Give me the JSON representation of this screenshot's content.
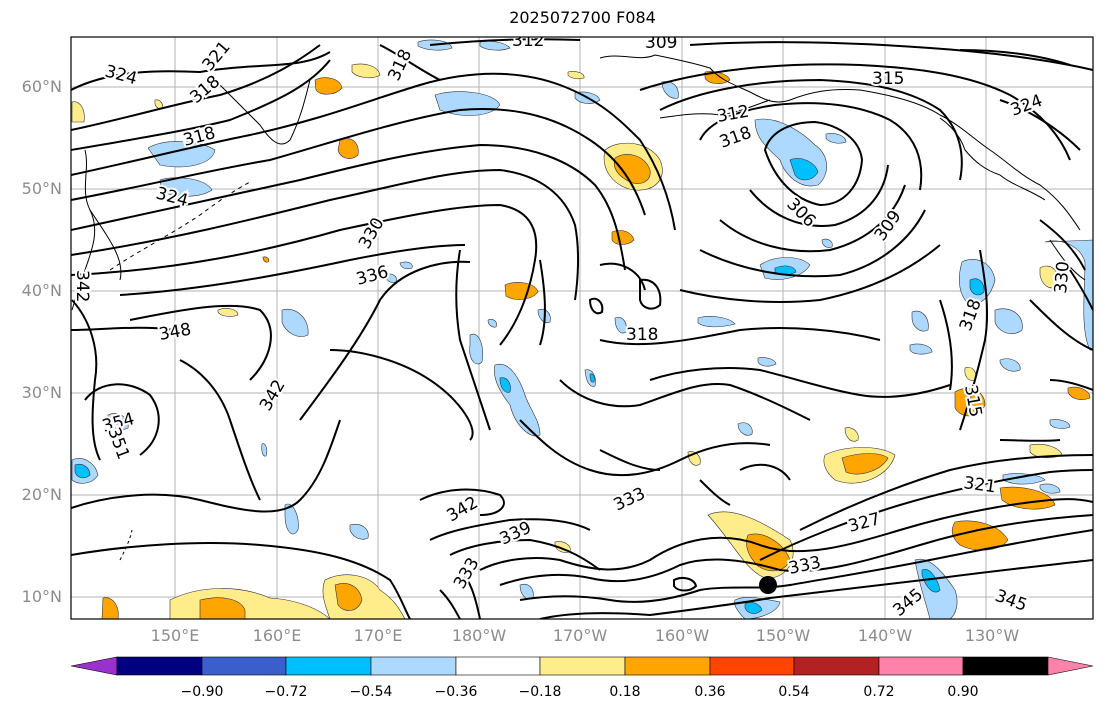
{
  "title": "2025072700 F084",
  "lat_labels": [
    "60°N",
    "50°N",
    "40°N",
    "30°N",
    "20°N",
    "10°N"
  ],
  "lon_labels": [
    "150°E",
    "160°E",
    "170°E",
    "180°W",
    "170°W",
    "160°W",
    "150°W",
    "140°W",
    "130°W"
  ],
  "colorbar": {
    "ticks": [
      "−0.90",
      "−0.72",
      "−0.54",
      "−0.36",
      "−0.18",
      "0.18",
      "0.36",
      "0.54",
      "0.72",
      "0.90"
    ],
    "colors": [
      "#9932cc",
      "#000080",
      "#3a5fcd",
      "#00bfff",
      "#add8ff",
      "#ffffff",
      "#ffec8b",
      "#ffa500",
      "#ff4500",
      "#b22222",
      "#ff82ab"
    ]
  },
  "contour_labels": [
    "312",
    "309",
    "321",
    "324",
    "318",
    "318",
    "315",
    "318",
    "324",
    "312",
    "318",
    "306",
    "309",
    "324",
    "330",
    "336",
    "342",
    "348",
    "318",
    "342",
    "354",
    "351",
    "342",
    "333",
    "339",
    "333",
    "321",
    "327",
    "333",
    "318",
    "315",
    "345",
    "345",
    "330"
  ],
  "marker": "black-dot"
}
